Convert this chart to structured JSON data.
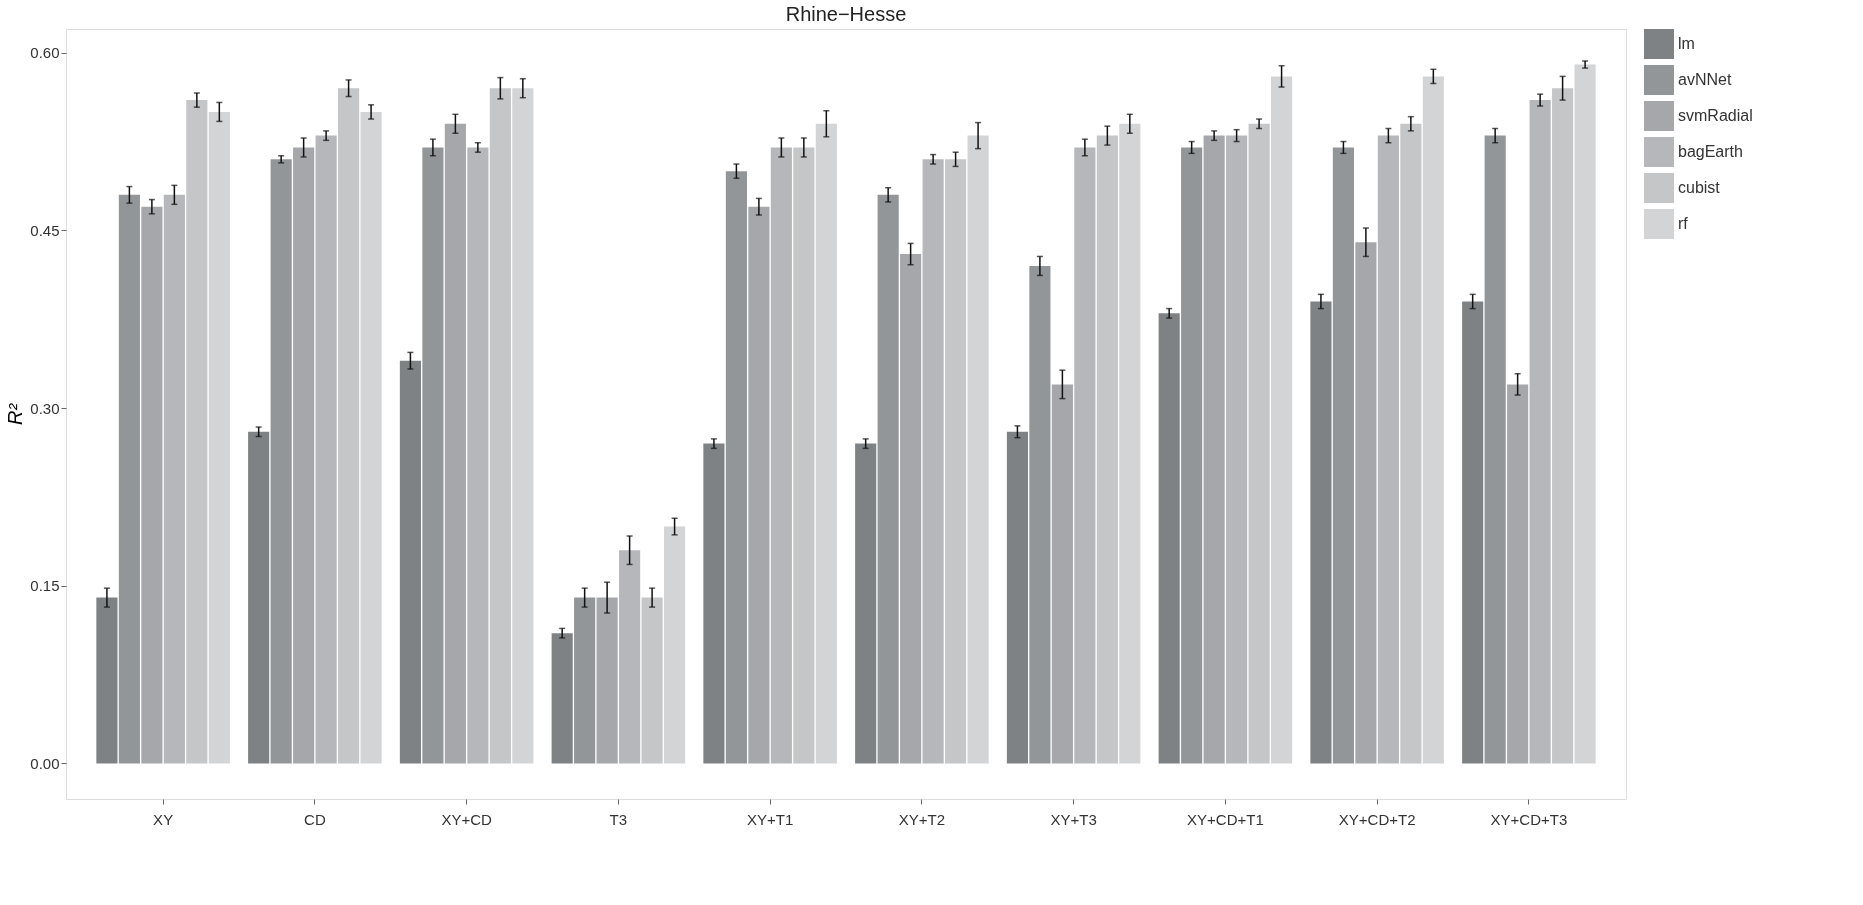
{
  "chart_data": {
    "type": "bar",
    "title": "Rhine−Hesse",
    "ylabel": "R²",
    "categories": [
      "XY",
      "CD",
      "XY+CD",
      "T3",
      "XY+T1",
      "XY+T2",
      "XY+T3",
      "XY+CD+T1",
      "XY+CD+T2",
      "XY+CD+T3"
    ],
    "series": [
      {
        "name": "lm",
        "color": "#7f8285",
        "values": [
          0.14,
          0.28,
          0.34,
          0.11,
          0.27,
          0.27,
          0.28,
          0.38,
          0.39,
          0.39
        ],
        "errors": [
          0.008,
          0.004,
          0.007,
          0.004,
          0.004,
          0.004,
          0.005,
          0.004,
          0.006,
          0.006
        ]
      },
      {
        "name": "avNNet",
        "color": "#939699",
        "values": [
          0.48,
          0.51,
          0.52,
          0.14,
          0.5,
          0.48,
          0.42,
          0.52,
          0.52,
          0.53
        ],
        "errors": [
          0.007,
          0.003,
          0.007,
          0.008,
          0.006,
          0.006,
          0.008,
          0.005,
          0.005,
          0.006
        ]
      },
      {
        "name": "svmRadial",
        "color": "#a6a7aa",
        "values": [
          0.47,
          0.52,
          0.54,
          0.14,
          0.47,
          0.43,
          0.32,
          0.53,
          0.44,
          0.32
        ],
        "errors": [
          0.006,
          0.008,
          0.008,
          0.013,
          0.007,
          0.009,
          0.012,
          0.004,
          0.012,
          0.009
        ]
      },
      {
        "name": "bagEarth",
        "color": "#b6b7ba",
        "values": [
          0.48,
          0.53,
          0.52,
          0.18,
          0.52,
          0.51,
          0.52,
          0.53,
          0.53,
          0.56
        ],
        "errors": [
          0.008,
          0.004,
          0.004,
          0.012,
          0.008,
          0.004,
          0.007,
          0.005,
          0.006,
          0.005
        ]
      },
      {
        "name": "cubist",
        "color": "#c5c6c8",
        "values": [
          0.56,
          0.57,
          0.57,
          0.14,
          0.52,
          0.51,
          0.53,
          0.54,
          0.54,
          0.57
        ],
        "errors": [
          0.006,
          0.007,
          0.009,
          0.008,
          0.008,
          0.006,
          0.008,
          0.004,
          0.006,
          0.01
        ]
      },
      {
        "name": "rf",
        "color": "#d3d4d6",
        "values": [
          0.55,
          0.55,
          0.57,
          0.2,
          0.54,
          0.53,
          0.54,
          0.58,
          0.58,
          0.59
        ],
        "errors": [
          0.008,
          0.006,
          0.008,
          0.007,
          0.011,
          0.011,
          0.008,
          0.009,
          0.006,
          0.003
        ]
      }
    ],
    "ylim": [
      -0.03,
      0.62
    ],
    "yticks": [
      {
        "value": 0,
        "label": "0.00"
      },
      {
        "value": 0.15,
        "label": "0.15"
      },
      {
        "value": 0.3,
        "label": "0.30"
      },
      {
        "value": 0.45,
        "label": "0.45"
      },
      {
        "value": 0.6,
        "label": "0.60"
      }
    ],
    "grid": false,
    "legend": "right"
  }
}
